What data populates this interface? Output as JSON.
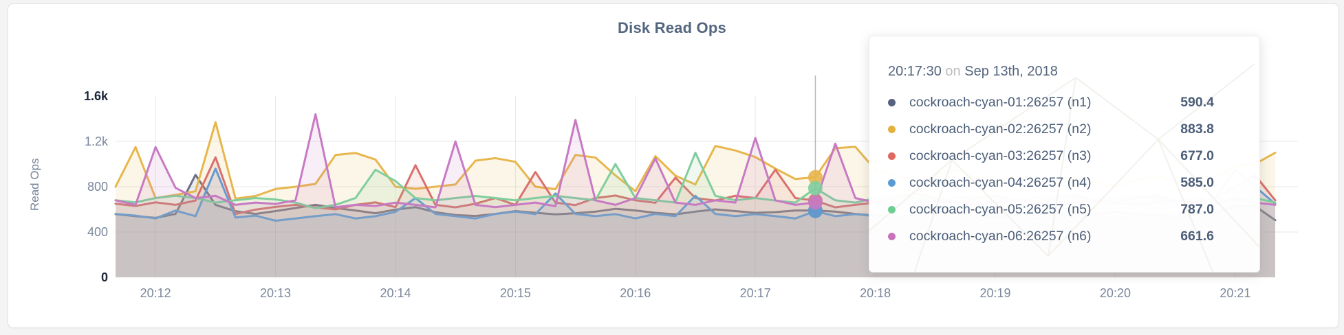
{
  "card": {
    "background": "#ffffff",
    "border": "#e1e1e1"
  },
  "chart_data": {
    "type": "area",
    "title": "Disk Read Ops",
    "ylabel": "Read Ops",
    "xlabel": "",
    "ylim": [
      0,
      1600
    ],
    "grid": true,
    "x_interval_seconds": 10,
    "y_ticks": [
      {
        "value": 0,
        "label": "0",
        "emphasis": true
      },
      {
        "value": 400,
        "label": "400",
        "emphasis": false
      },
      {
        "value": 800,
        "label": "800",
        "emphasis": false
      },
      {
        "value": 1200,
        "label": "1.2k",
        "emphasis": false
      },
      {
        "value": 1600,
        "label": "1.6k",
        "emphasis": true
      }
    ],
    "x_ticks": [
      {
        "index": 2,
        "label": "20:12"
      },
      {
        "index": 8,
        "label": "20:13"
      },
      {
        "index": 14,
        "label": "20:14"
      },
      {
        "index": 20,
        "label": "20:15"
      },
      {
        "index": 26,
        "label": "20:16"
      },
      {
        "index": 32,
        "label": "20:17"
      },
      {
        "index": 38,
        "label": "20:18"
      },
      {
        "index": 44,
        "label": "20:19"
      },
      {
        "index": 50,
        "label": "20:20"
      },
      {
        "index": 56,
        "label": "20:21"
      }
    ],
    "hover": {
      "index": 35
    },
    "series": [
      {
        "id": "n1",
        "name": "cockroach-cyan-01:26257 (n1)",
        "color": "#676f85",
        "values": [
          558,
          540,
          525,
          560,
          905,
          640,
          584,
          560,
          585,
          612,
          640,
          612,
          590,
          566,
          598,
          620,
          575,
          550,
          542,
          560,
          585,
          570,
          556,
          566,
          580,
          605,
          590,
          570,
          556,
          580,
          600,
          585,
          570,
          576,
          590,
          590.4,
          580,
          560,
          545,
          532,
          556,
          575,
          560,
          540,
          532,
          550,
          570,
          556,
          545,
          560,
          575,
          560,
          545,
          532,
          550,
          565,
          630,
          628,
          505
        ]
      },
      {
        "id": "n2",
        "name": "cockroach-cyan-02:26257 (n2)",
        "color": "#e7b64c",
        "values": [
          800,
          1150,
          700,
          728,
          760,
          1370,
          695,
          718,
          780,
          800,
          825,
          1080,
          1098,
          1040,
          800,
          782,
          800,
          820,
          1030,
          1052,
          1020,
          800,
          778,
          1080,
          1058,
          900,
          760,
          1070,
          898,
          820,
          1160,
          1120,
          1062,
          960,
          868,
          883.8,
          1140,
          1152,
          950,
          900,
          852,
          902,
          948,
          880,
          840,
          900,
          860,
          820,
          878,
          840,
          800,
          858,
          898,
          840,
          802,
          878,
          980,
          1002,
          1100
        ]
      },
      {
        "id": "n3",
        "name": "cockroach-cyan-03:26257 (n3)",
        "color": "#d8716d",
        "values": [
          650,
          630,
          662,
          640,
          678,
          1060,
          560,
          598,
          622,
          640,
          618,
          600,
          640,
          662,
          620,
          990,
          640,
          618,
          650,
          700,
          640,
          930,
          660,
          638,
          700,
          722,
          680,
          658,
          880,
          700,
          678,
          720,
          700,
          950,
          700,
          677,
          618,
          640,
          660,
          700,
          742,
          700,
          660,
          700,
          720,
          680,
          660,
          700,
          720,
          680,
          662,
          700,
          720,
          680,
          660,
          700,
          800,
          900,
          680
        ]
      },
      {
        "id": "n4",
        "name": "cockroach-cyan-04:26257 (n4)",
        "color": "#649bd2",
        "values": [
          560,
          545,
          520,
          590,
          540,
          960,
          528,
          545,
          500,
          520,
          540,
          558,
          520,
          540,
          578,
          700,
          560,
          540,
          520,
          560,
          580,
          558,
          740,
          560,
          540,
          558,
          520,
          560,
          540,
          720,
          560,
          540,
          558,
          540,
          520,
          585,
          540,
          558,
          540,
          520,
          556,
          540,
          522,
          540,
          558,
          540,
          520,
          540,
          558,
          540,
          522,
          540,
          556,
          540,
          520,
          700,
          950,
          800,
          648
        ]
      },
      {
        "id": "n5",
        "name": "cockroach-cyan-05:26257 (n5)",
        "color": "#80cd9d",
        "values": [
          680,
          662,
          700,
          720,
          700,
          660,
          680,
          700,
          688,
          660,
          610,
          640,
          700,
          950,
          850,
          700,
          680,
          700,
          718,
          700,
          680,
          700,
          720,
          700,
          680,
          1000,
          700,
          680,
          660,
          1100,
          720,
          680,
          700,
          678,
          660,
          787,
          680,
          660,
          700,
          718,
          700,
          680,
          700,
          720,
          700,
          680,
          700,
          718,
          700,
          680,
          700,
          720,
          700,
          680,
          700,
          680,
          678,
          700,
          660
        ]
      },
      {
        "id": "n6",
        "name": "cockroach-cyan-06:26257 (n6)",
        "color": "#c77ac3",
        "values": [
          680,
          640,
          1150,
          790,
          700,
          720,
          640,
          660,
          648,
          680,
          1440,
          620,
          640,
          630,
          660,
          640,
          618,
          1200,
          640,
          620,
          640,
          660,
          628,
          1390,
          680,
          640,
          700,
          1050,
          660,
          640,
          680,
          660,
          1230,
          680,
          640,
          661.6,
          1180,
          700,
          660,
          640,
          660,
          680,
          650,
          640,
          660,
          680,
          650,
          640,
          660,
          678,
          650,
          640,
          660,
          680,
          650,
          640,
          700,
          660,
          640
        ]
      }
    ]
  },
  "tooltip": {
    "time": "20:17:30",
    "conjunction": "on",
    "date": "Sep 13th, 2018",
    "rows": [
      {
        "label": "cockroach-cyan-01:26257 (n1)",
        "value": "590.4",
        "color": "#56627e"
      },
      {
        "label": "cockroach-cyan-02:26257 (n2)",
        "value": "883.8",
        "color": "#e3b13f"
      },
      {
        "label": "cockroach-cyan-03:26257 (n3)",
        "value": "677.0",
        "color": "#e0695f"
      },
      {
        "label": "cockroach-cyan-04:26257 (n4)",
        "value": "585.0",
        "color": "#5b9bd3"
      },
      {
        "label": "cockroach-cyan-05:26257 (n5)",
        "value": "787.0",
        "color": "#6fcd92"
      },
      {
        "label": "cockroach-cyan-06:26257 (n6)",
        "value": "661.6",
        "color": "#c873bd"
      }
    ]
  }
}
